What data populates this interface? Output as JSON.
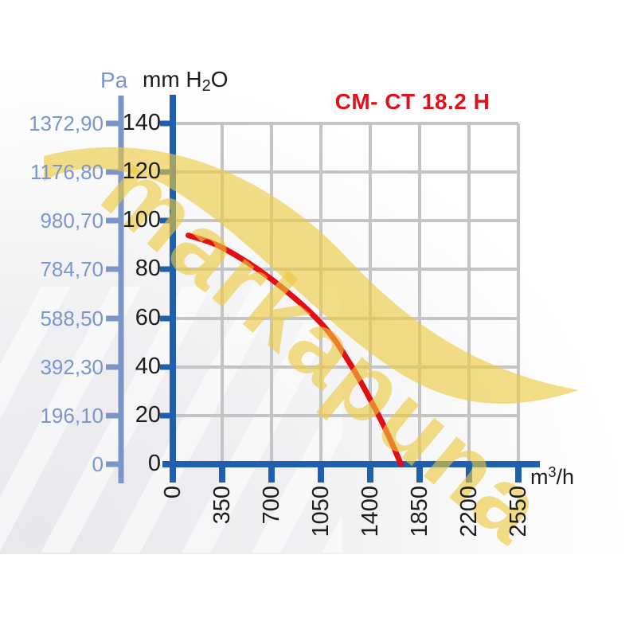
{
  "title": {
    "text": "CM- CT 18.2 H"
  },
  "axes": {
    "pa": {
      "header": "Pa",
      "labels": [
        "1372,90",
        "1176,80",
        "980,70",
        "784,70",
        "588,50",
        "392,30",
        "196,10",
        "0"
      ]
    },
    "mm": {
      "header_pre": "mm H",
      "header_sub": "2",
      "header_post": "O",
      "labels": [
        "140",
        "120",
        "100",
        "80",
        "60",
        "40",
        "20",
        "0"
      ]
    },
    "x": {
      "labels": [
        "0",
        "350",
        "700",
        "1050",
        "1400",
        "1850",
        "2200",
        "2550"
      ],
      "unit_pre": "m",
      "unit_sup": "3",
      "unit_post": "/h"
    }
  },
  "watermark": {
    "text": "markapuna"
  },
  "colors": {
    "axis_main": "#1f5fae",
    "axis_pa": "#7b95c9",
    "grid": "#c4c4c6",
    "curve": "#e30d13",
    "title": "#e2111c",
    "watermark": "#ecc83c",
    "label_pa": "#7b95ce",
    "label_dark": "#1c1c1c"
  },
  "chart_data": {
    "type": "line",
    "title": "CM- CT 18.2 H",
    "x_unit": "m³/h",
    "y_unit_left": "Pa",
    "y_unit_right": "mm H2O",
    "x_ticks": [
      0,
      350,
      700,
      1050,
      1400,
      1850,
      2200,
      2550
    ],
    "y_ticks_mm_h2o": [
      0,
      20,
      40,
      60,
      80,
      100,
      120,
      140
    ],
    "y_ticks_pa": [
      0,
      196.1,
      392.3,
      588.5,
      784.7,
      980.7,
      1176.8,
      1372.9
    ],
    "ylim_mm_h2o": [
      0,
      140
    ],
    "grid": true,
    "legend": "none",
    "series": [
      {
        "name": "CM- CT 18.2 H",
        "color": "#e30d13",
        "points": [
          {
            "x": 110,
            "y": 94
          },
          {
            "x": 350,
            "y": 89
          },
          {
            "x": 700,
            "y": 76
          },
          {
            "x": 1050,
            "y": 58
          },
          {
            "x": 1260,
            "y": 41
          },
          {
            "x": 1510,
            "y": 17
          },
          {
            "x": 1680,
            "y": 0
          }
        ]
      }
    ]
  }
}
